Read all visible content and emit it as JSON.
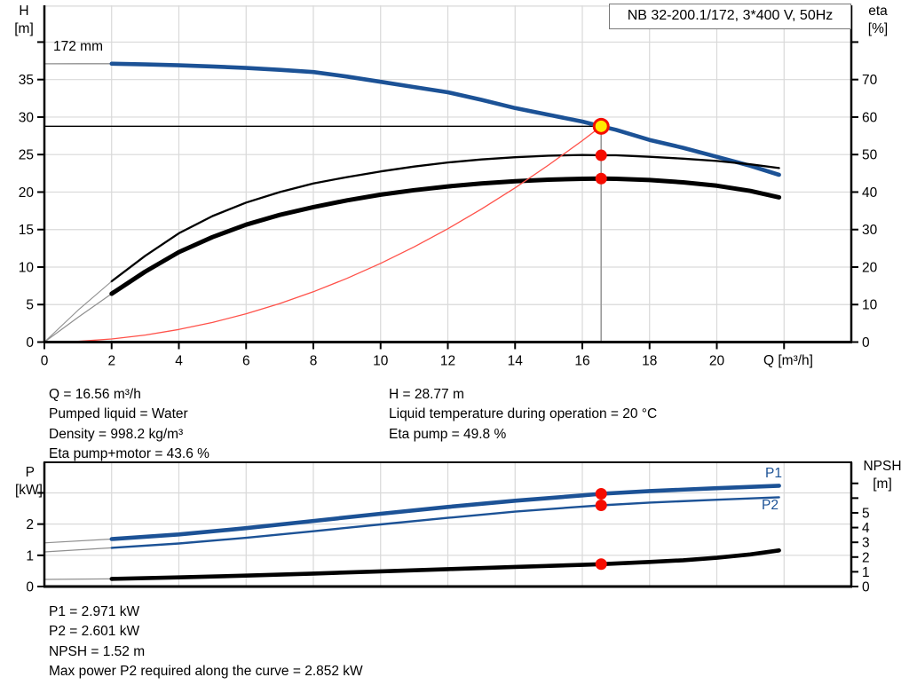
{
  "header": {
    "title": "NB 32-200.1/172, 3*400 V, 50Hz"
  },
  "colors": {
    "blue": "#1c5296",
    "black": "#000000",
    "thin_gray": "#8f8f8f",
    "system_red": "#ff5149",
    "marker_red": "#f50c00",
    "marker_yellow": "#ffe900",
    "grid": "#d9d9d9",
    "drop_line": "#9b9b9b",
    "duty_hline": "#000000"
  },
  "duty_readout": {
    "left": [
      "Q = 16.56 m³/h",
      "Pumped liquid = Water",
      "Density = 998.2 kg/m³",
      "Eta pump+motor = 43.6 %"
    ],
    "right": [
      "H = 28.77 m",
      "Liquid temperature during operation = 20 °C",
      "Eta pump = 49.8 %"
    ]
  },
  "power_readout": [
    "P1 = 2.971 kW",
    "P2 = 2.601 kW",
    "NPSH = 1.52 m",
    "Max power P2 required along the curve = 2.852 kW"
  ],
  "chart_data": [
    {
      "id": "qh",
      "type": "line",
      "title": "Pump head / efficiency vs flow",
      "annotations": {
        "impeller": "172 mm"
      },
      "x_axis": {
        "label": "Q [m³/h]",
        "min": 0,
        "max": 24,
        "draw_ticks": true,
        "ticks": [
          0,
          2,
          4,
          6,
          8,
          10,
          12,
          14,
          16,
          18,
          20,
          22
        ],
        "tick_labels": [
          "0",
          "2",
          "4",
          "6",
          "8",
          "10",
          "12",
          "14",
          "16",
          "18",
          "20"
        ],
        "gridlines": [
          2,
          4,
          6,
          8,
          10,
          12,
          14,
          16,
          18,
          20,
          22
        ]
      },
      "y_left": {
        "title": [
          "H",
          "[m]"
        ],
        "min": 0,
        "max": 44.9,
        "ticks": [
          0,
          5,
          10,
          15,
          20,
          25,
          30,
          35,
          40
        ],
        "tick_labels": [
          "0",
          "5",
          "10",
          "15",
          "20",
          "25",
          "30",
          "35"
        ],
        "gridlines": [
          5,
          10,
          15,
          20,
          25,
          30,
          35,
          40,
          44.8
        ]
      },
      "y_right": {
        "title": [
          "eta",
          "[%]"
        ],
        "min": 0,
        "max": 89.8,
        "ticks": [
          0,
          10,
          20,
          30,
          40,
          50,
          60,
          70,
          80
        ],
        "tick_labels": [
          "0",
          "10",
          "20",
          "30",
          "40",
          "50",
          "60",
          "70"
        ]
      },
      "series": [
        {
          "name": "qh-curve",
          "axis": "left",
          "color_key": "blue",
          "width": 4.6,
          "thin_color_key": "thin_gray",
          "thin_width": 1.3,
          "thin_points": [
            [
              0,
              37.1
            ],
            [
              1,
              37.12
            ],
            [
              2,
              37.12
            ]
          ],
          "points": [
            [
              2,
              37.12
            ],
            [
              3,
              37.02
            ],
            [
              4,
              36.9
            ],
            [
              5,
              36.75
            ],
            [
              6,
              36.55
            ],
            [
              7,
              36.3
            ],
            [
              8,
              36.0
            ],
            [
              9,
              35.4
            ],
            [
              10,
              34.7
            ],
            [
              11,
              34.0
            ],
            [
              12,
              33.3
            ],
            [
              13,
              32.3
            ],
            [
              14,
              31.2
            ],
            [
              15,
              30.3
            ],
            [
              16,
              29.4
            ],
            [
              16.56,
              28.77
            ],
            [
              17,
              28.3
            ],
            [
              18,
              26.95
            ],
            [
              19,
              25.9
            ],
            [
              20,
              24.7
            ],
            [
              21,
              23.5
            ],
            [
              21.85,
              22.3
            ]
          ]
        },
        {
          "name": "eta-pump-motor-curve",
          "axis": "right",
          "color_key": "black",
          "width": 5,
          "thin_color_key": "thin_gray",
          "thin_width": 1.2,
          "thin_points": [
            [
              0,
              0
            ],
            [
              1,
              6.6
            ],
            [
              2,
              12.9
            ]
          ],
          "points": [
            [
              2,
              12.9
            ],
            [
              3,
              18.8
            ],
            [
              4,
              24.0
            ],
            [
              5,
              28.0
            ],
            [
              6,
              31.3
            ],
            [
              7,
              33.9
            ],
            [
              8,
              36.0
            ],
            [
              9,
              37.8
            ],
            [
              10,
              39.3
            ],
            [
              11,
              40.5
            ],
            [
              12,
              41.5
            ],
            [
              13,
              42.3
            ],
            [
              14,
              42.9
            ],
            [
              15,
              43.3
            ],
            [
              16,
              43.55
            ],
            [
              16.56,
              43.6
            ],
            [
              17,
              43.55
            ],
            [
              18,
              43.2
            ],
            [
              19,
              42.6
            ],
            [
              20,
              41.7
            ],
            [
              21,
              40.3
            ],
            [
              21.85,
              38.6
            ]
          ]
        },
        {
          "name": "eta-pump-curve",
          "axis": "right",
          "color_key": "black",
          "width": 2.3,
          "thin_color_key": "thin_gray",
          "thin_width": 1.1,
          "thin_points": [
            [
              0,
              0
            ],
            [
              1,
              8.5
            ],
            [
              2,
              16.2
            ]
          ],
          "points": [
            [
              2,
              16.2
            ],
            [
              3,
              23.0
            ],
            [
              4,
              29.0
            ],
            [
              5,
              33.6
            ],
            [
              6,
              37.2
            ],
            [
              7,
              40.0
            ],
            [
              8,
              42.3
            ],
            [
              9,
              44.0
            ],
            [
              10,
              45.5
            ],
            [
              11,
              46.8
            ],
            [
              12,
              47.9
            ],
            [
              13,
              48.7
            ],
            [
              14,
              49.3
            ],
            [
              15,
              49.7
            ],
            [
              16,
              49.9
            ],
            [
              16.56,
              49.8
            ],
            [
              17,
              49.8
            ],
            [
              18,
              49.4
            ],
            [
              19,
              48.9
            ],
            [
              20,
              48.3
            ],
            [
              21,
              47.4
            ],
            [
              21.85,
              46.4
            ]
          ]
        },
        {
          "name": "system-curve",
          "axis": "left",
          "color_key": "system_red",
          "width": 1.3,
          "points": [
            [
              0,
              0
            ],
            [
              1,
              0.1
            ],
            [
              2,
              0.42
            ],
            [
              3,
              0.94
            ],
            [
              4,
              1.68
            ],
            [
              5,
              2.62
            ],
            [
              6,
              3.78
            ],
            [
              7,
              5.14
            ],
            [
              8,
              6.71
            ],
            [
              9,
              8.5
            ],
            [
              10,
              10.49
            ],
            [
              11,
              12.7
            ],
            [
              12,
              15.11
            ],
            [
              13,
              17.73
            ],
            [
              14,
              20.56
            ],
            [
              15,
              23.61
            ],
            [
              16,
              26.86
            ],
            [
              16.56,
              28.77
            ]
          ]
        }
      ],
      "duty": {
        "q": 16.56,
        "ring": {
          "axis": "left",
          "value": 28.77
        },
        "dots": [
          {
            "axis": "right",
            "value": 49.8
          },
          {
            "axis": "right",
            "value": 43.6
          }
        ],
        "hline_value": 28.77,
        "vline": true
      }
    },
    {
      "id": "power-npsh",
      "type": "line",
      "title": "Power / NPSH vs flow",
      "curve_labels": {
        "p1": "P1",
        "p2": "P2"
      },
      "x_axis": {
        "label": "",
        "min": 0,
        "max": 24,
        "draw_ticks": false,
        "ticks": [],
        "tick_labels": [],
        "gridlines": [
          2,
          4,
          6,
          8,
          10,
          12,
          14,
          16,
          18,
          20,
          22
        ]
      },
      "y_left": {
        "title": [
          "P",
          "[kW]"
        ],
        "min": 0,
        "max": 3.98,
        "ticks": [
          0,
          1,
          2,
          3
        ],
        "tick_labels": [
          "0",
          "1",
          "2"
        ],
        "gridlines": [
          1,
          2,
          3
        ]
      },
      "y_right": {
        "title": [
          "NPSH",
          "[m]"
        ],
        "min": 0,
        "max": 8.43,
        "ticks": [
          0,
          1,
          2,
          3,
          4,
          5,
          6,
          7
        ],
        "tick_labels": [
          "0",
          "1",
          "2",
          "3",
          "4",
          "5"
        ]
      },
      "series": [
        {
          "name": "p2-curve",
          "axis": "left",
          "color_key": "blue",
          "width": 2.4,
          "thin_color_key": "thin_gray",
          "thin_width": 1.2,
          "thin_points": [
            [
              0,
              1.11
            ],
            [
              2,
              1.24
            ]
          ],
          "points": [
            [
              2,
              1.24
            ],
            [
              4,
              1.38
            ],
            [
              6,
              1.56
            ],
            [
              8,
              1.77
            ],
            [
              10,
              1.99
            ],
            [
              12,
              2.2
            ],
            [
              14,
              2.4
            ],
            [
              16,
              2.56
            ],
            [
              16.56,
              2.601
            ],
            [
              18,
              2.69
            ],
            [
              20,
              2.78
            ],
            [
              21.85,
              2.86
            ]
          ]
        },
        {
          "name": "p1-curve",
          "axis": "left",
          "color_key": "blue",
          "width": 4.6,
          "thin_color_key": "thin_gray",
          "thin_width": 1.2,
          "thin_points": [
            [
              0,
              1.4
            ],
            [
              2,
              1.52
            ]
          ],
          "points": [
            [
              2,
              1.52
            ],
            [
              4,
              1.67
            ],
            [
              6,
              1.87
            ],
            [
              8,
              2.1
            ],
            [
              10,
              2.33
            ],
            [
              12,
              2.55
            ],
            [
              14,
              2.75
            ],
            [
              16,
              2.92
            ],
            [
              16.56,
              2.971
            ],
            [
              18,
              3.06
            ],
            [
              20,
              3.15
            ],
            [
              21.85,
              3.23
            ]
          ]
        },
        {
          "name": "npsh-curve",
          "axis": "right",
          "color_key": "black",
          "width": 4.6,
          "thin_color_key": "thin_gray",
          "thin_width": 1.2,
          "thin_points": [
            [
              0,
              0.48
            ],
            [
              2,
              0.52
            ]
          ],
          "points": [
            [
              2,
              0.52
            ],
            [
              4,
              0.62
            ],
            [
              6,
              0.74
            ],
            [
              8,
              0.88
            ],
            [
              10,
              1.03
            ],
            [
              12,
              1.18
            ],
            [
              14,
              1.33
            ],
            [
              16,
              1.47
            ],
            [
              16.56,
              1.52
            ],
            [
              18,
              1.67
            ],
            [
              19,
              1.78
            ],
            [
              20,
              1.95
            ],
            [
              21,
              2.18
            ],
            [
              21.85,
              2.45
            ]
          ]
        }
      ],
      "duty": {
        "q": 16.56,
        "dots": [
          {
            "axis": "left",
            "value": 2.971
          },
          {
            "axis": "left",
            "value": 2.601
          },
          {
            "axis": "right",
            "value": 1.52
          }
        ]
      }
    }
  ]
}
